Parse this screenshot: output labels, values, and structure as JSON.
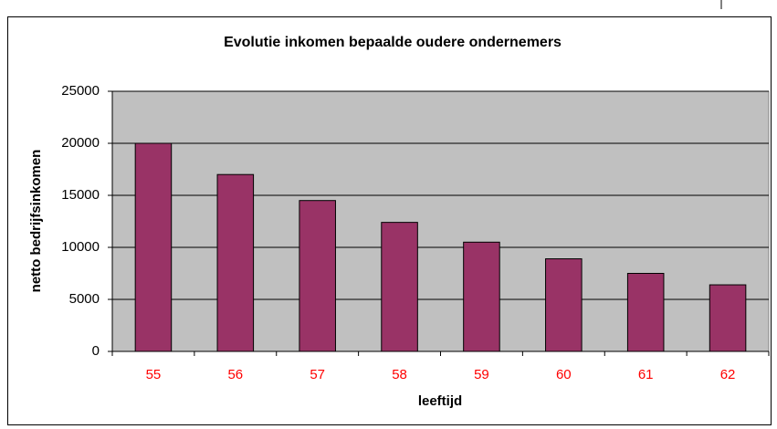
{
  "chart_data": {
    "type": "bar",
    "title": "Evolutie inkomen bepaalde oudere ondernemers",
    "x_label": "leeftijd",
    "y_label": "netto bedrijfsinkomen",
    "categories": [
      "55",
      "56",
      "57",
      "58",
      "59",
      "60",
      "61",
      "62"
    ],
    "values": [
      20000,
      17000,
      14500,
      12400,
      10500,
      8900,
      7500,
      6400
    ],
    "color": "#993366",
    "ylim": [
      0,
      25000
    ],
    "yticks": [
      0,
      5000,
      10000,
      15000,
      20000,
      25000
    ],
    "grid": true
  }
}
